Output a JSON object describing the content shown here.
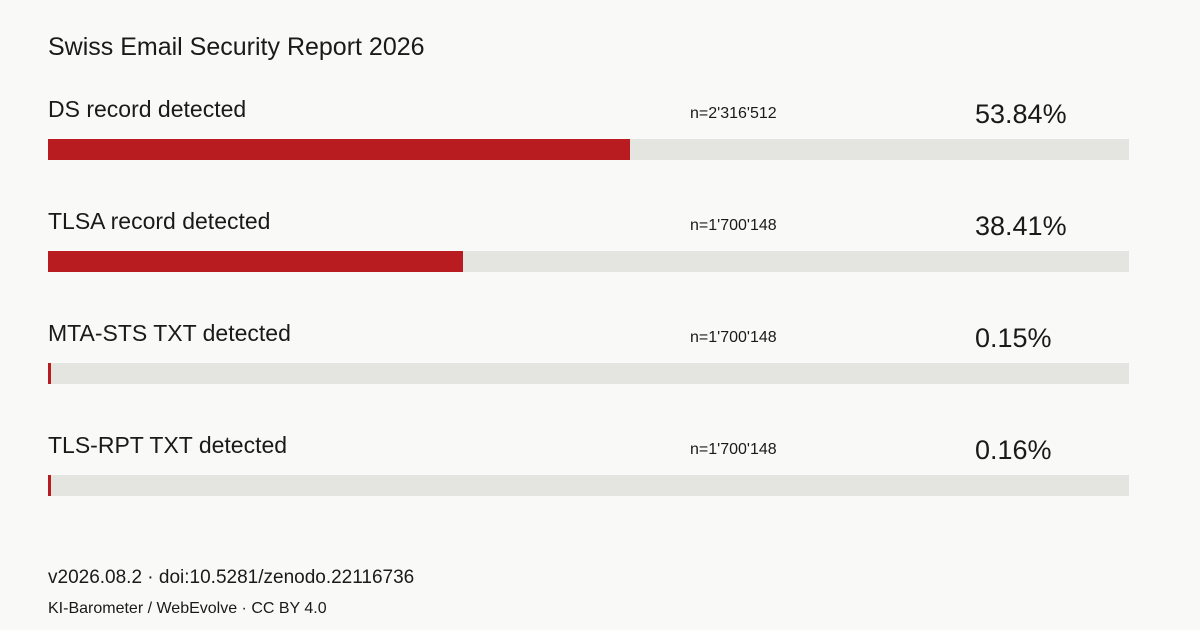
{
  "chart_data": {
    "type": "bar",
    "title": "Swiss Email Security Report 2026",
    "xlim": [
      0,
      100
    ],
    "bars": [
      {
        "label": "DS record detected",
        "n": "n=2'316'512",
        "pct_label": "53.84%",
        "value": 53.84
      },
      {
        "label": "TLSA record detected",
        "n": "n=1'700'148",
        "pct_label": "38.41%",
        "value": 38.41
      },
      {
        "label": "MTA-STS TXT detected",
        "n": "n=1'700'148",
        "pct_label": "0.15%",
        "value": 0.15
      },
      {
        "label": "TLS-RPT TXT detected",
        "n": "n=1'700'148",
        "pct_label": "0.16%",
        "value": 0.16
      }
    ],
    "colors": {
      "fill": "#b81c21",
      "track": "#e4e4e1"
    }
  },
  "footer": {
    "line1": "v2026.08.2 · doi:10.5281/zenodo.22116736",
    "line2": "KI-Barometer / WebEvolve · CC BY 4.0"
  }
}
